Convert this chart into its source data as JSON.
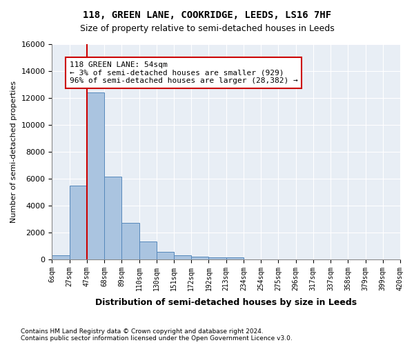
{
  "title1": "118, GREEN LANE, COOKRIDGE, LEEDS, LS16 7HF",
  "title2": "Size of property relative to semi-detached houses in Leeds",
  "xlabel": "Distribution of semi-detached houses by size in Leeds",
  "ylabel": "Number of semi-detached properties",
  "bin_labels": [
    "6sqm",
    "27sqm",
    "47sqm",
    "68sqm",
    "89sqm",
    "110sqm",
    "130sqm",
    "151sqm",
    "172sqm",
    "192sqm",
    "213sqm",
    "234sqm",
    "254sqm",
    "275sqm",
    "296sqm",
    "317sqm",
    "337sqm",
    "358sqm",
    "379sqm",
    "399sqm",
    "420sqm"
  ],
  "bar_values": [
    320,
    5500,
    12400,
    6150,
    2700,
    1320,
    550,
    280,
    220,
    170,
    130,
    0,
    0,
    0,
    0,
    0,
    0,
    0,
    0,
    0
  ],
  "bar_color": "#aac4e0",
  "bar_edge_color": "#5588bb",
  "vline_x": 1,
  "vline_color": "#cc0000",
  "annotation_text": "118 GREEN LANE: 54sqm\n← 3% of semi-detached houses are smaller (929)\n96% of semi-detached houses are larger (28,382) →",
  "annotation_box_color": "#ffffff",
  "annotation_box_edge": "#cc0000",
  "ylim": [
    0,
    16000
  ],
  "yticks": [
    0,
    2000,
    4000,
    6000,
    8000,
    10000,
    12000,
    14000,
    16000
  ],
  "bg_color": "#e8eef5",
  "footnote1": "Contains HM Land Registry data © Crown copyright and database right 2024.",
  "footnote2": "Contains public sector information licensed under the Open Government Licence v3.0."
}
